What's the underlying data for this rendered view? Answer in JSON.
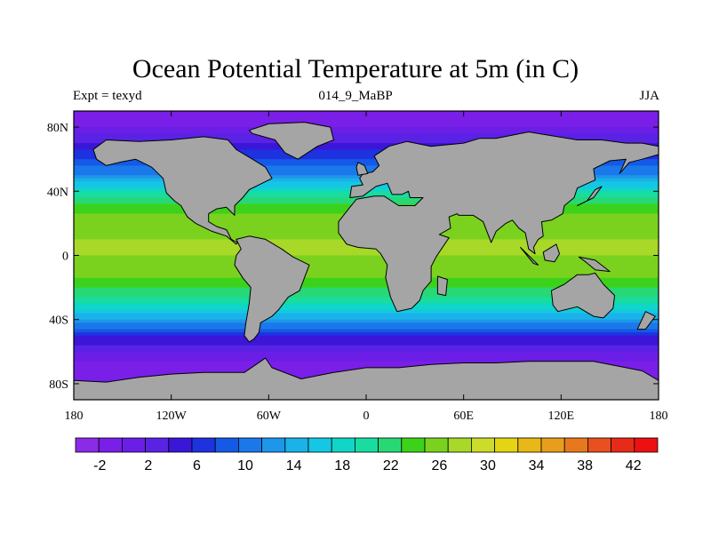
{
  "title": "Ocean Potential Temperature at 5m (in C)",
  "subtitle_left": "Expt = texyd",
  "subtitle_center": "014_9_MaBP",
  "subtitle_right": "JJA",
  "colors": {
    "land": "#a5a5a5",
    "coastline": "#000000"
  },
  "map": {
    "projection": "cylindrical equidistant",
    "lon_range": [
      -180,
      180
    ],
    "lat_range": [
      -90,
      90
    ],
    "x_ticks": [
      {
        "lon": -180,
        "label": "180"
      },
      {
        "lon": -120,
        "label": "120W"
      },
      {
        "lon": -60,
        "label": "60W"
      },
      {
        "lon": 0,
        "label": "0"
      },
      {
        "lon": 60,
        "label": "60E"
      },
      {
        "lon": 120,
        "label": "120E"
      },
      {
        "lon": 180,
        "label": "180"
      }
    ],
    "y_ticks": [
      {
        "lat": 80,
        "label": "80N"
      },
      {
        "lat": 40,
        "label": "40N"
      },
      {
        "lat": 0,
        "label": "0"
      },
      {
        "lat": -40,
        "label": "40S"
      },
      {
        "lat": -80,
        "label": "80S"
      }
    ]
  },
  "colorbar": {
    "levels": [
      -4,
      -2,
      0,
      2,
      4,
      6,
      8,
      10,
      12,
      14,
      16,
      18,
      20,
      22,
      24,
      26,
      28,
      30,
      32,
      34,
      36,
      38,
      40,
      42,
      44
    ],
    "colors": [
      "#8b2be8",
      "#7a1fe8",
      "#6a1ee6",
      "#5a22e4",
      "#3a16d8",
      "#1e32e0",
      "#145ae6",
      "#1a78ea",
      "#1e96ea",
      "#1ab2e8",
      "#14c8e4",
      "#10d6c8",
      "#18dca0",
      "#28d874",
      "#3cd21a",
      "#7ad21e",
      "#a8d828",
      "#ccdc2a",
      "#e4d414",
      "#e8b818",
      "#e89e1c",
      "#e8781e",
      "#e85020",
      "#e82a18",
      "#ee1010"
    ],
    "labels": [
      {
        "value": -2,
        "text": "-2"
      },
      {
        "value": 2,
        "text": "2"
      },
      {
        "value": 6,
        "text": "6"
      },
      {
        "value": 10,
        "text": "10"
      },
      {
        "value": 14,
        "text": "14"
      },
      {
        "value": 18,
        "text": "18"
      },
      {
        "value": 22,
        "text": "22"
      },
      {
        "value": 26,
        "text": "26"
      },
      {
        "value": 30,
        "text": "30"
      },
      {
        "value": 34,
        "text": "34"
      },
      {
        "value": 38,
        "text": "38"
      },
      {
        "value": 42,
        "text": "42"
      }
    ]
  },
  "field": {
    "band_lats": [
      -90,
      -72,
      -65,
      -60,
      -55,
      -50,
      -45,
      -40,
      -30,
      -20,
      -10,
      0,
      10,
      20,
      30,
      40,
      45,
      50,
      55,
      60,
      65,
      70,
      75,
      80,
      90
    ],
    "band_temps": [
      -2,
      -2,
      0,
      2,
      4,
      6,
      10,
      14,
      20,
      24,
      27,
      28,
      28,
      27,
      25,
      20,
      16,
      12,
      10,
      8,
      6,
      4,
      2,
      0,
      -2
    ]
  }
}
